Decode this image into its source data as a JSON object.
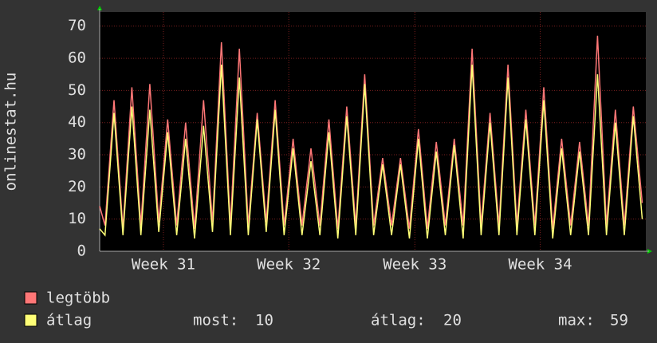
{
  "chart_data": {
    "type": "line",
    "ylabel": "onlinestat.hu",
    "x": [
      0,
      0.3,
      0.8,
      1.3,
      1.8,
      2.3,
      2.8,
      3.3,
      3.8,
      4.3,
      4.8,
      5.3,
      5.8,
      6.3,
      6.8,
      7.3,
      7.8,
      8.3,
      8.8,
      9.3,
      9.8,
      10.3,
      10.8,
      11.3,
      11.8,
      12.3,
      12.8,
      13.3,
      13.8,
      14.3,
      14.8,
      15.3,
      15.8,
      16.3,
      16.8,
      17.3,
      17.8,
      18.3,
      18.8,
      19.3,
      19.8,
      20.3,
      20.8,
      21.3,
      21.8,
      22.3,
      22.8,
      23.3,
      23.8,
      24.3,
      24.8,
      25.3,
      25.8,
      26.3,
      26.8,
      27.3,
      27.8,
      28.3,
      28.8,
      29.3,
      29.8,
      30.3
    ],
    "series": [
      {
        "name": "legtöbb",
        "color": "#ff7777",
        "values": [
          14,
          8,
          47,
          7,
          51,
          8,
          52,
          9,
          41,
          8,
          40,
          7,
          47,
          9,
          65,
          8,
          63,
          8,
          43,
          9,
          47,
          8,
          35,
          8,
          32,
          8,
          41,
          7,
          45,
          8,
          55,
          8,
          29,
          8,
          29,
          7,
          38,
          7,
          34,
          8,
          35,
          8,
          63,
          8,
          43,
          8,
          58,
          8,
          44,
          8,
          51,
          7,
          35,
          8,
          34,
          8,
          67,
          8,
          44,
          8,
          45,
          15
        ]
      },
      {
        "name": "átlag",
        "color": "#ffff77",
        "values": [
          7,
          5,
          43,
          5,
          45,
          5,
          44,
          6,
          37,
          5,
          35,
          4,
          39,
          6,
          58,
          5,
          54,
          5,
          41,
          6,
          44,
          5,
          32,
          5,
          28,
          5,
          37,
          4,
          42,
          5,
          52,
          5,
          27,
          5,
          27,
          4,
          35,
          4,
          31,
          5,
          33,
          4,
          58,
          5,
          40,
          5,
          54,
          5,
          41,
          5,
          47,
          4,
          32,
          5,
          31,
          5,
          55,
          5,
          40,
          5,
          42,
          10
        ]
      }
    ],
    "xlim": [
      0,
      30.5
    ],
    "xticks": [
      {
        "value": 3.56,
        "label": "Week 31"
      },
      {
        "value": 10.56,
        "label": "Week 32"
      },
      {
        "value": 17.6,
        "label": "Week 33"
      },
      {
        "value": 24.6,
        "label": "Week 34"
      }
    ],
    "ylim": [
      0,
      74.4
    ],
    "yticks": [
      0,
      10,
      20,
      30,
      40,
      50,
      60,
      70
    ],
    "grid": true,
    "stats": [
      {
        "label": "most:",
        "value": 10
      },
      {
        "label": "átlag:",
        "value": 20
      },
      {
        "label": "max:",
        "value": 59
      }
    ]
  }
}
